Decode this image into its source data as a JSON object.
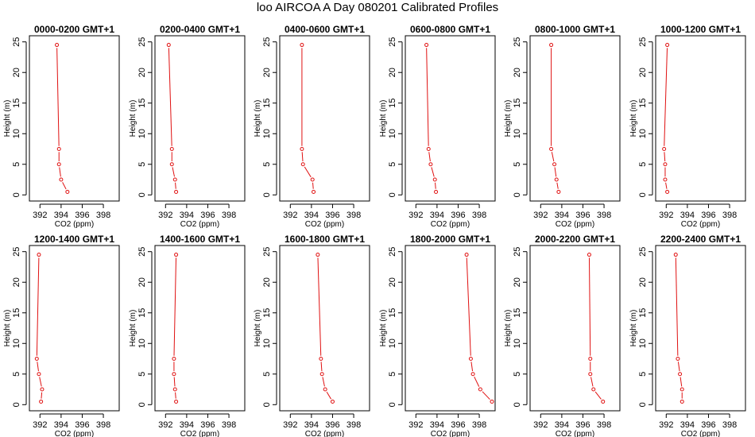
{
  "page": {
    "title": "loo AIRCOA A  Day 080201  Calibrated Profiles"
  },
  "colors": {
    "line": "#e01010",
    "axis": "#000000",
    "background": "#ffffff"
  },
  "chart_data": [
    {
      "type": "line",
      "title": "0000-0200 GMT+1",
      "xlabel": "CO2 (ppm)",
      "ylabel": "Height (m)",
      "xlim": [
        391,
        399.5
      ],
      "ylim": [
        -1,
        26
      ],
      "xticks": [
        392,
        394,
        396,
        398
      ],
      "yticks": [
        0,
        5,
        10,
        15,
        20,
        25
      ],
      "series": [
        {
          "x": [
            394.6,
            394.0,
            393.8,
            393.8,
            393.6
          ],
          "y": [
            0.5,
            2.5,
            5,
            7.5,
            24.5
          ]
        }
      ]
    },
    {
      "type": "line",
      "title": "0200-0400 GMT+1",
      "xlabel": "CO2 (ppm)",
      "ylabel": "Height (m)",
      "xlim": [
        391,
        399.5
      ],
      "ylim": [
        -1,
        26
      ],
      "xticks": [
        392,
        394,
        396,
        398
      ],
      "yticks": [
        0,
        5,
        10,
        15,
        20,
        25
      ],
      "series": [
        {
          "x": [
            393.0,
            392.9,
            392.6,
            392.6,
            392.3
          ],
          "y": [
            0.5,
            2.5,
            5,
            7.5,
            24.5
          ]
        }
      ]
    },
    {
      "type": "line",
      "title": "0400-0600 GMT+1",
      "xlabel": "CO2 (ppm)",
      "ylabel": "Height (m)",
      "xlim": [
        391,
        399.5
      ],
      "ylim": [
        -1,
        26
      ],
      "xticks": [
        392,
        394,
        396,
        398
      ],
      "yticks": [
        0,
        5,
        10,
        15,
        20,
        25
      ],
      "series": [
        {
          "x": [
            394.2,
            394.1,
            393.2,
            393.1,
            393.1
          ],
          "y": [
            0.5,
            2.5,
            5,
            7.5,
            24.5
          ]
        }
      ]
    },
    {
      "type": "line",
      "title": "0600-0800 GMT+1",
      "xlabel": "CO2 (ppm)",
      "ylabel": "Height (m)",
      "xlim": [
        391,
        399.5
      ],
      "ylim": [
        -1,
        26
      ],
      "xticks": [
        392,
        394,
        396,
        398
      ],
      "yticks": [
        0,
        5,
        10,
        15,
        20,
        25
      ],
      "series": [
        {
          "x": [
            393.9,
            393.8,
            393.4,
            393.2,
            393.0
          ],
          "y": [
            0.5,
            2.5,
            5,
            7.5,
            24.5
          ]
        }
      ]
    },
    {
      "type": "line",
      "title": "0800-1000 GMT+1",
      "xlabel": "CO2 (ppm)",
      "ylabel": "Height (m)",
      "xlim": [
        391,
        399.5
      ],
      "ylim": [
        -1,
        26
      ],
      "xticks": [
        392,
        394,
        396,
        398
      ],
      "yticks": [
        0,
        5,
        10,
        15,
        20,
        25
      ],
      "series": [
        {
          "x": [
            393.7,
            393.5,
            393.3,
            393.0,
            393.0
          ],
          "y": [
            0.5,
            2.5,
            5,
            7.5,
            24.5
          ]
        }
      ]
    },
    {
      "type": "line",
      "title": "1000-1200 GMT+1",
      "xlabel": "CO2 (ppm)",
      "ylabel": "Height (m)",
      "xlim": [
        391,
        399.5
      ],
      "ylim": [
        -1,
        26
      ],
      "xticks": [
        392,
        394,
        396,
        398
      ],
      "yticks": [
        0,
        5,
        10,
        15,
        20,
        25
      ],
      "series": [
        {
          "x": [
            392.1,
            391.9,
            391.9,
            391.8,
            392.1
          ],
          "y": [
            0.5,
            2.5,
            5,
            7.5,
            24.5
          ]
        }
      ]
    },
    {
      "type": "line",
      "title": "1200-1400 GMT+1",
      "xlabel": "CO2 (ppm)",
      "ylabel": "Height (m)",
      "xlim": [
        391,
        399.5
      ],
      "ylim": [
        -1,
        26
      ],
      "xticks": [
        392,
        394,
        396,
        398
      ],
      "yticks": [
        0,
        5,
        10,
        15,
        20,
        25
      ],
      "series": [
        {
          "x": [
            392.1,
            392.2,
            391.9,
            391.7,
            391.9
          ],
          "y": [
            0.5,
            2.5,
            5,
            7.5,
            24.5
          ]
        }
      ]
    },
    {
      "type": "line",
      "title": "1400-1600 GMT+1",
      "xlabel": "CO2 (ppm)",
      "ylabel": "Height (m)",
      "xlim": [
        391,
        399.5
      ],
      "ylim": [
        -1,
        26
      ],
      "xticks": [
        392,
        394,
        396,
        398
      ],
      "yticks": [
        0,
        5,
        10,
        15,
        20,
        25
      ],
      "series": [
        {
          "x": [
            393.0,
            392.9,
            392.8,
            392.8,
            393.0
          ],
          "y": [
            0.5,
            2.5,
            5,
            7.5,
            24.5
          ]
        }
      ]
    },
    {
      "type": "line",
      "title": "1600-1800 GMT+1",
      "xlabel": "CO2 (ppm)",
      "ylabel": "Height (m)",
      "xlim": [
        391,
        399.5
      ],
      "ylim": [
        -1,
        26
      ],
      "xticks": [
        392,
        394,
        396,
        398
      ],
      "yticks": [
        0,
        5,
        10,
        15,
        20,
        25
      ],
      "series": [
        {
          "x": [
            396.0,
            395.3,
            395.0,
            394.9,
            394.6
          ],
          "y": [
            0.5,
            2.5,
            5,
            7.5,
            24.5
          ]
        }
      ]
    },
    {
      "type": "line",
      "title": "1800-2000 GMT+1",
      "xlabel": "CO2 (ppm)",
      "ylabel": "Height (m)",
      "xlim": [
        391,
        399.5
      ],
      "ylim": [
        -1,
        26
      ],
      "xticks": [
        392,
        394,
        396,
        398
      ],
      "yticks": [
        0,
        5,
        10,
        15,
        20,
        25
      ],
      "series": [
        {
          "x": [
            399.2,
            398.1,
            397.4,
            397.2,
            396.8
          ],
          "y": [
            0.5,
            2.5,
            5,
            7.5,
            24.5
          ]
        }
      ]
    },
    {
      "type": "line",
      "title": "2000-2200 GMT+1",
      "xlabel": "CO2 (ppm)",
      "ylabel": "Height (m)",
      "xlim": [
        391,
        399.5
      ],
      "ylim": [
        -1,
        26
      ],
      "xticks": [
        392,
        394,
        396,
        398
      ],
      "yticks": [
        0,
        5,
        10,
        15,
        20,
        25
      ],
      "series": [
        {
          "x": [
            397.9,
            397.0,
            396.7,
            396.7,
            396.6
          ],
          "y": [
            0.5,
            2.5,
            5,
            7.5,
            24.5
          ]
        }
      ]
    },
    {
      "type": "line",
      "title": "2200-2400 GMT+1",
      "xlabel": "CO2 (ppm)",
      "ylabel": "Height (m)",
      "xlim": [
        391,
        399.5
      ],
      "ylim": [
        -1,
        26
      ],
      "xticks": [
        392,
        394,
        396,
        398
      ],
      "yticks": [
        0,
        5,
        10,
        15,
        20,
        25
      ],
      "series": [
        {
          "x": [
            393.5,
            393.5,
            393.3,
            393.1,
            392.9
          ],
          "y": [
            0.5,
            2.5,
            5,
            7.5,
            24.5
          ]
        }
      ]
    }
  ]
}
